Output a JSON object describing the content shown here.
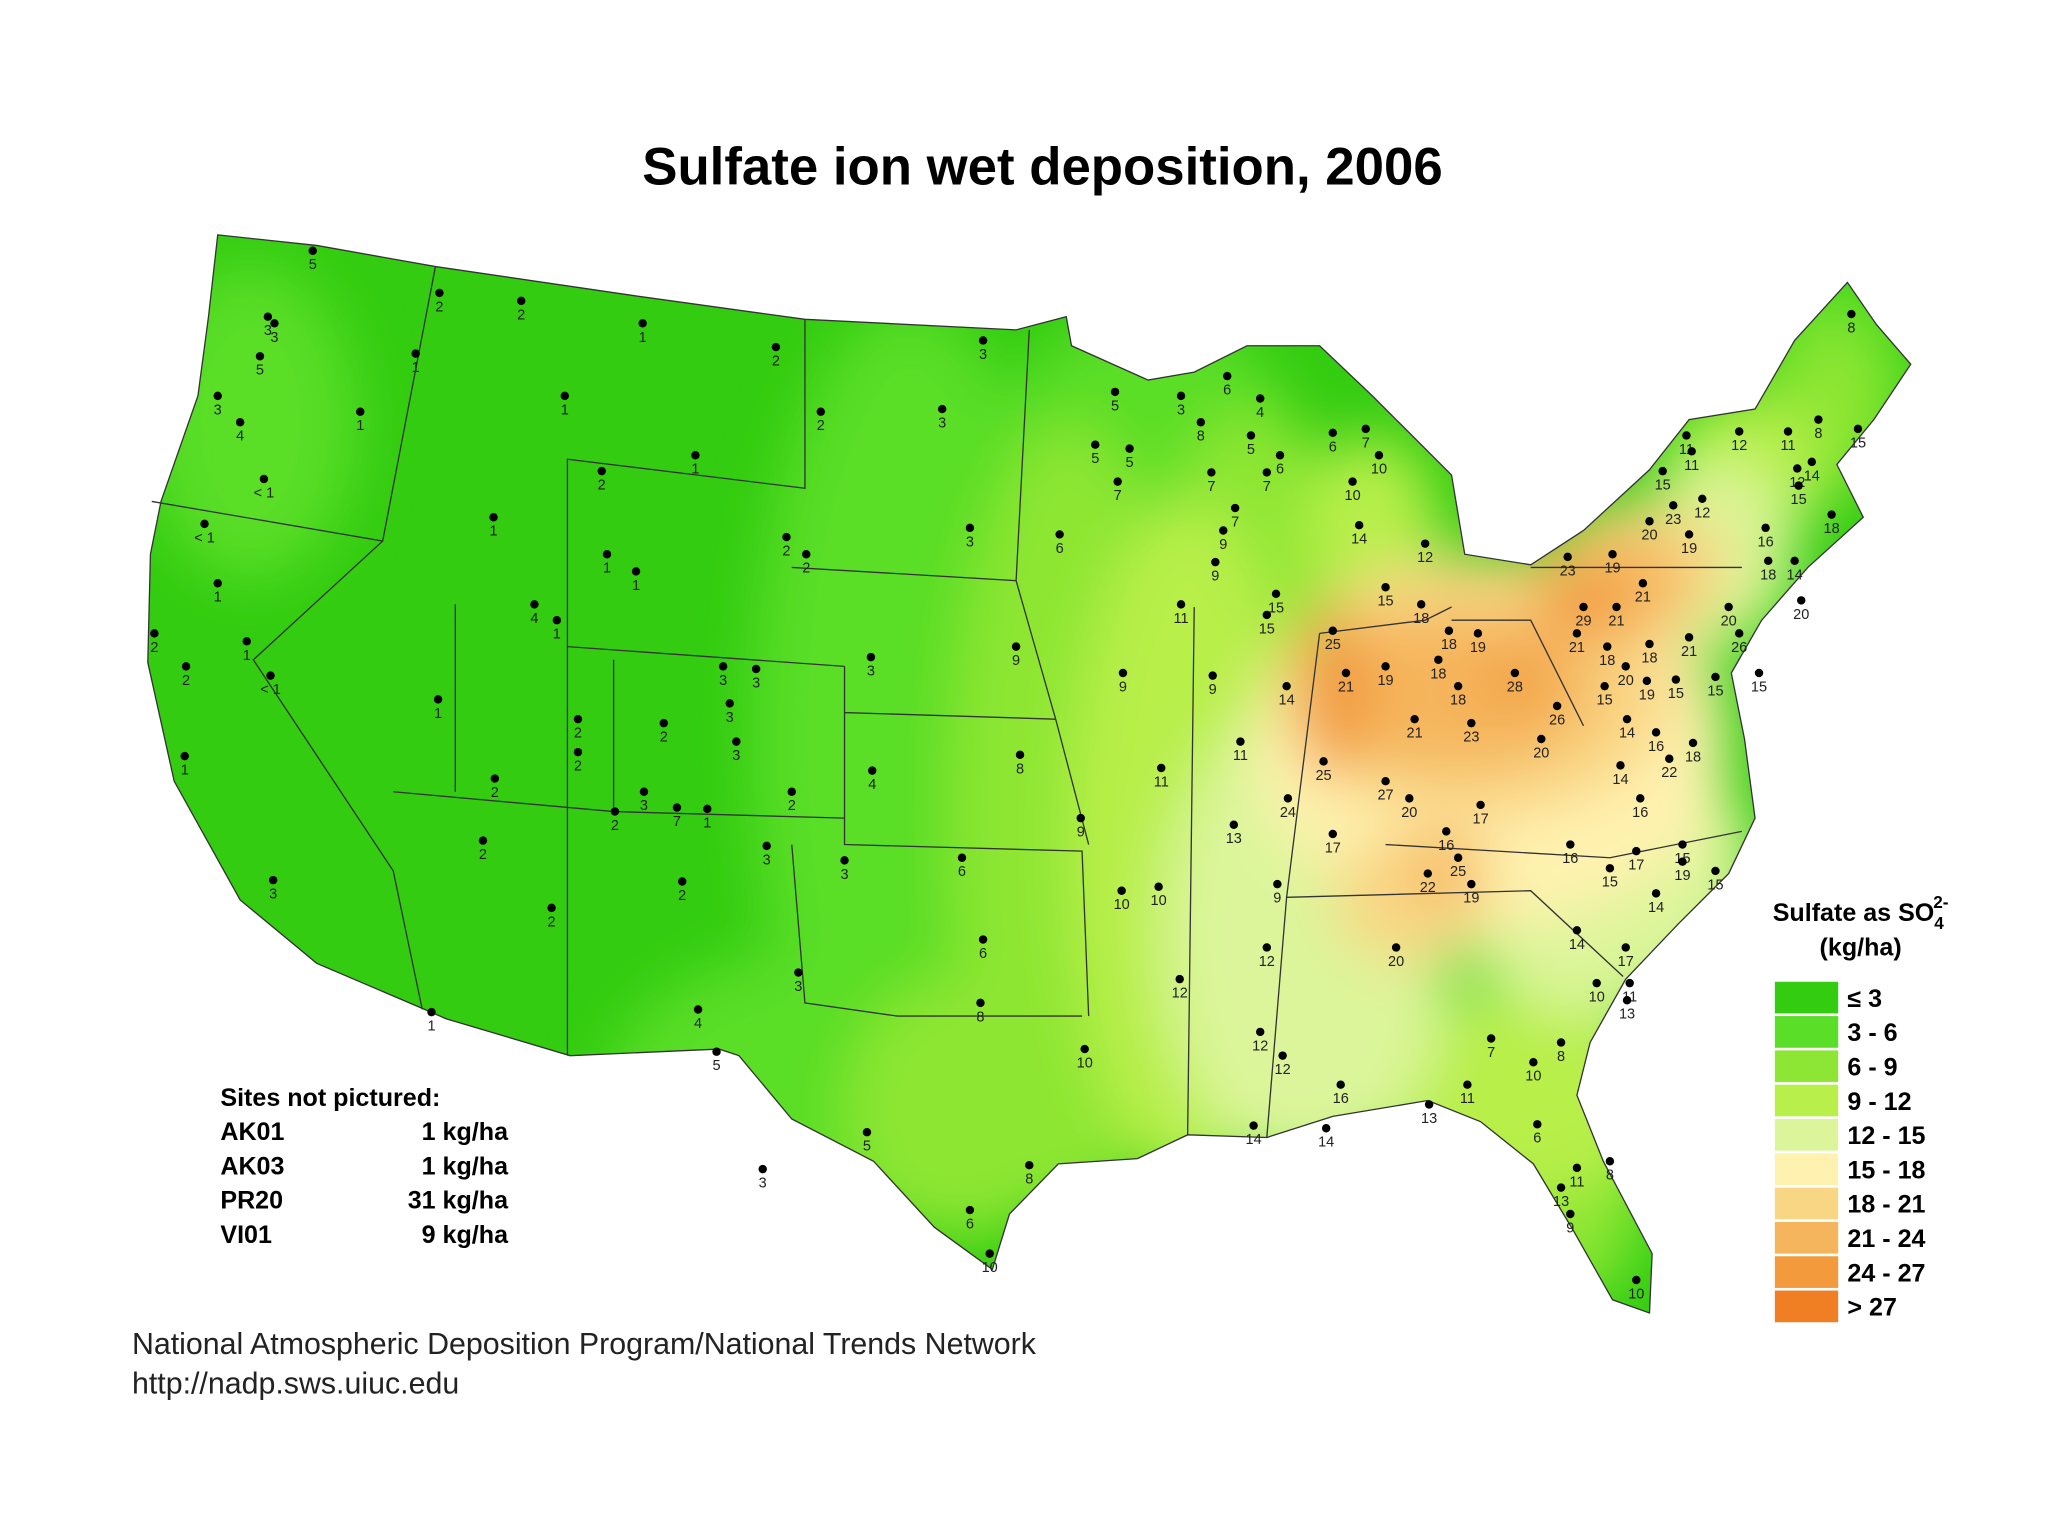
{
  "title": "Sulfate ion wet deposition, 2006",
  "sites": [
    5,
    3,
    3,
    1,
    2,
    2,
    1,
    2,
    5,
    3,
    4,
    1,
    "< 1",
    1,
    1,
    2,
    3,
    3,
    2,
    1,
    1,
    1,
    2,
    2,
    3,
    "< 1",
    1,
    1,
    2,
    2,
    "< 1",
    1,
    4,
    1,
    2,
    2,
    2,
    2,
    3,
    3,
    3,
    3,
    2,
    1,
    3,
    2,
    7,
    1,
    3,
    2,
    2,
    1,
    2,
    3,
    3,
    6,
    3,
    4,
    5,
    3,
    9,
    4,
    8,
    9,
    6,
    8,
    10,
    3,
    5,
    8,
    6,
    10,
    10,
    10,
    12,
    11,
    9,
    9,
    11,
    6,
    5,
    5,
    5,
    3,
    6,
    4,
    8,
    5,
    6,
    6,
    7,
    7,
    7,
    7,
    7,
    9,
    9,
    15,
    15,
    10,
    10,
    14,
    12,
    15,
    18,
    18,
    19,
    25,
    21,
    19,
    18,
    18,
    28,
    23,
    21,
    26,
    20,
    14,
    11,
    25,
    27,
    20,
    17,
    24,
    13,
    17,
    16,
    25,
    22,
    19,
    9,
    12,
    12,
    12,
    20,
    7,
    10,
    11,
    13,
    16,
    14,
    14,
    6,
    8,
    11,
    8,
    13,
    9,
    10,
    10,
    11,
    13,
    14,
    17,
    16,
    17,
    15,
    15,
    19,
    15,
    14,
    14,
    22,
    18,
    16,
    14,
    16,
    15,
    20,
    19,
    15,
    15,
    15,
    21,
    18,
    18,
    21,
    21,
    29,
    21,
    23,
    19,
    20,
    19,
    23,
    12,
    15,
    11,
    11,
    12,
    11,
    12,
    15,
    16,
    18,
    14,
    20,
    20,
    26,
    8,
    14,
    15,
    18,
    8
  ],
  "legend": {
    "title": "Sulfate as SO",
    "subscript": "4",
    "superscript": "2-",
    "unit": "(kg/ha)",
    "bins": [
      {
        "label": "≤ 3",
        "color": "#33cc11"
      },
      {
        "label": "3 - 6",
        "color": "#5ade28"
      },
      {
        "label": "6 - 9",
        "color": "#8de633"
      },
      {
        "label": "9 - 12",
        "color": "#b8ef4a"
      },
      {
        "label": "12 - 15",
        "color": "#dcf59a"
      },
      {
        "label": "15 - 18",
        "color": "#fff2b0"
      },
      {
        "label": "18 - 21",
        "color": "#f9d684"
      },
      {
        "label": "21 - 24",
        "color": "#f5b55c"
      },
      {
        "label": "24 - 27",
        "color": "#f29a3c"
      },
      {
        "label": "> 27",
        "color": "#ef7f22"
      }
    ]
  },
  "not_pictured": {
    "title": "Sites not pictured:",
    "rows": [
      [
        "AK01",
        "1 kg/ha"
      ],
      [
        "AK03",
        "1 kg/ha"
      ],
      [
        "PR20",
        "31 kg/ha"
      ],
      [
        "VI01",
        "9 kg/ha"
      ]
    ]
  },
  "footer": {
    "line1": "National Atmospheric Deposition Program/National Trends Network",
    "line2": "http://nadp.sws.uiuc.edu"
  }
}
